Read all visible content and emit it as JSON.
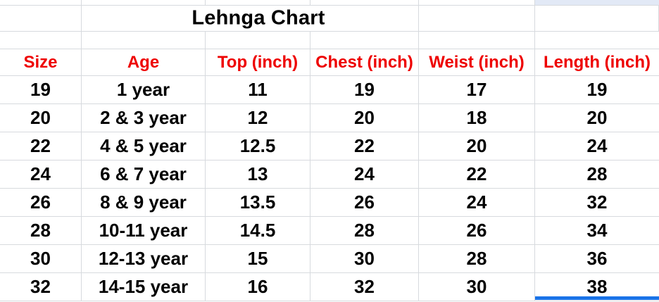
{
  "sheet": {
    "title": "Lehnga Chart",
    "columns": [
      "Size",
      "Age",
      "Top (inch)",
      "Chest (inch)",
      "Weist (inch)",
      "Length (inch)"
    ],
    "rows": [
      [
        "19",
        "1 year",
        "11",
        "19",
        "17",
        "19"
      ],
      [
        "20",
        "2 & 3 year",
        "12",
        "20",
        "18",
        "20"
      ],
      [
        "22",
        "4 & 5 year",
        "12.5",
        "22",
        "20",
        "24"
      ],
      [
        "24",
        "6 & 7 year",
        "13",
        "24",
        "22",
        "28"
      ],
      [
        "26",
        "8 & 9 year",
        "13.5",
        "26",
        "24",
        "32"
      ],
      [
        "28",
        "10-11 year",
        "14.5",
        "28",
        "26",
        "34"
      ],
      [
        "30",
        "12-13 year",
        "15",
        "30",
        "28",
        "36"
      ],
      [
        "32",
        "14-15 year",
        "16",
        "32",
        "30",
        "38"
      ]
    ],
    "colors": {
      "header_text": "#ee0000",
      "body_text": "#000000",
      "gridline": "#d7dade",
      "selection_blue": "#1a73e8",
      "frozen_cell_fill": "#e2e9f6",
      "background": "#ffffff"
    }
  }
}
